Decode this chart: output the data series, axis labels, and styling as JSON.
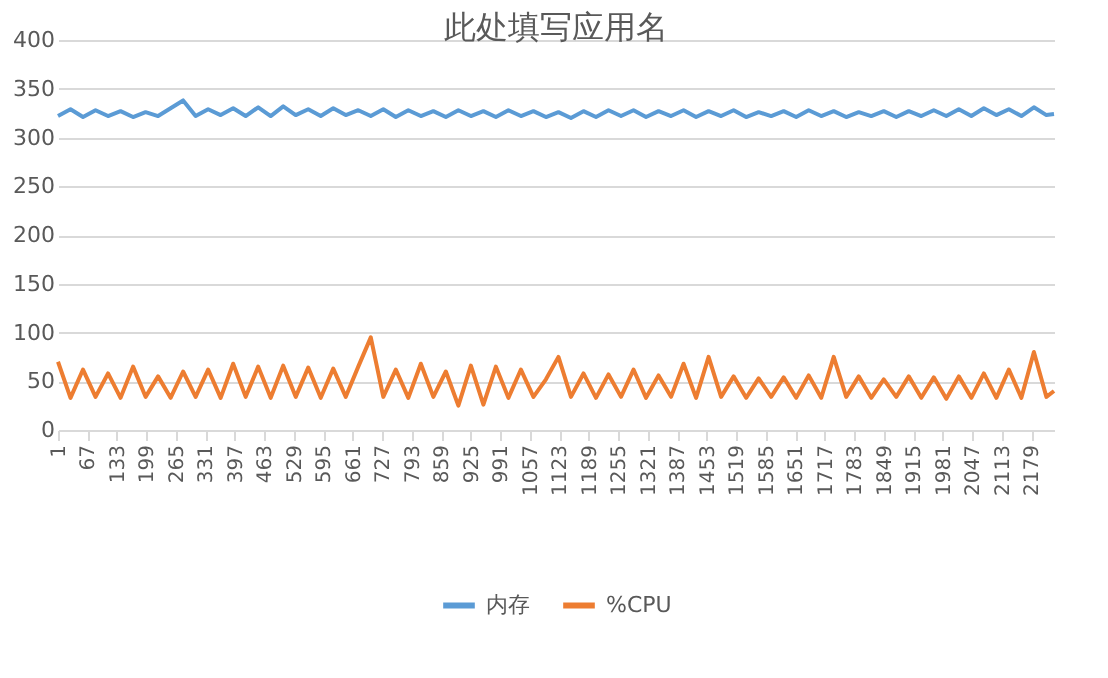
{
  "chart_data": {
    "type": "line",
    "title": "此处填写应用名",
    "x": [
      1,
      29,
      57,
      85,
      113,
      141,
      169,
      197,
      225,
      253,
      281,
      309,
      337,
      365,
      393,
      421,
      449,
      477,
      505,
      533,
      561,
      589,
      617,
      645,
      673,
      701,
      729,
      757,
      785,
      813,
      841,
      869,
      897,
      925,
      953,
      981,
      1009,
      1037,
      1065,
      1093,
      1121,
      1149,
      1177,
      1205,
      1233,
      1261,
      1289,
      1317,
      1345,
      1373,
      1401,
      1429,
      1457,
      1485,
      1513,
      1541,
      1569,
      1597,
      1625,
      1653,
      1681,
      1709,
      1737,
      1765,
      1793,
      1821,
      1849,
      1877,
      1905,
      1933,
      1961,
      1989,
      2017,
      2045,
      2073,
      2101,
      2129,
      2157,
      2185,
      2213,
      2230
    ],
    "series": [
      {
        "name": "内存",
        "color": "#5b9bd5",
        "values": [
          322,
          329,
          321,
          328,
          322,
          327,
          321,
          326,
          322,
          330,
          338,
          322,
          329,
          323,
          330,
          322,
          331,
          322,
          332,
          323,
          329,
          322,
          330,
          323,
          328,
          322,
          329,
          321,
          328,
          322,
          327,
          321,
          328,
          322,
          327,
          321,
          328,
          322,
          327,
          321,
          326,
          320,
          327,
          321,
          328,
          322,
          328,
          321,
          327,
          322,
          328,
          321,
          327,
          322,
          328,
          321,
          326,
          322,
          327,
          321,
          328,
          322,
          327,
          321,
          326,
          322,
          327,
          321,
          327,
          322,
          328,
          322,
          329,
          322,
          330,
          323,
          329,
          322,
          331,
          323,
          324
        ]
      },
      {
        "name": "%CPU",
        "color": "#ed7d31",
        "values": [
          70,
          33,
          62,
          34,
          58,
          33,
          65,
          34,
          55,
          33,
          60,
          34,
          62,
          33,
          68,
          34,
          65,
          33,
          66,
          34,
          64,
          33,
          63,
          34,
          65,
          95,
          34,
          62,
          33,
          68,
          34,
          60,
          25,
          66,
          26,
          65,
          33,
          62,
          34,
          52,
          75,
          34,
          58,
          33,
          57,
          34,
          62,
          33,
          56,
          34,
          68,
          33,
          75,
          34,
          55,
          33,
          53,
          34,
          54,
          33,
          56,
          33,
          75,
          34,
          55,
          33,
          52,
          34,
          55,
          33,
          54,
          32,
          55,
          33,
          58,
          33,
          62,
          33,
          80,
          34,
          40
        ]
      }
    ],
    "xlim": [
      1,
      2230
    ],
    "xticks": [
      1,
      67,
      133,
      199,
      265,
      331,
      397,
      463,
      529,
      595,
      661,
      727,
      793,
      859,
      925,
      991,
      1057,
      1123,
      1189,
      1255,
      1321,
      1387,
      1453,
      1519,
      1585,
      1651,
      1717,
      1783,
      1849,
      1915,
      1981,
      2047,
      2113,
      2179
    ],
    "ylim": [
      0,
      400
    ],
    "yticks": [
      0,
      50,
      100,
      150,
      200,
      250,
      300,
      350,
      400
    ],
    "grid": "y",
    "legend": "bottom",
    "marker": "none",
    "line_style": "solid"
  }
}
